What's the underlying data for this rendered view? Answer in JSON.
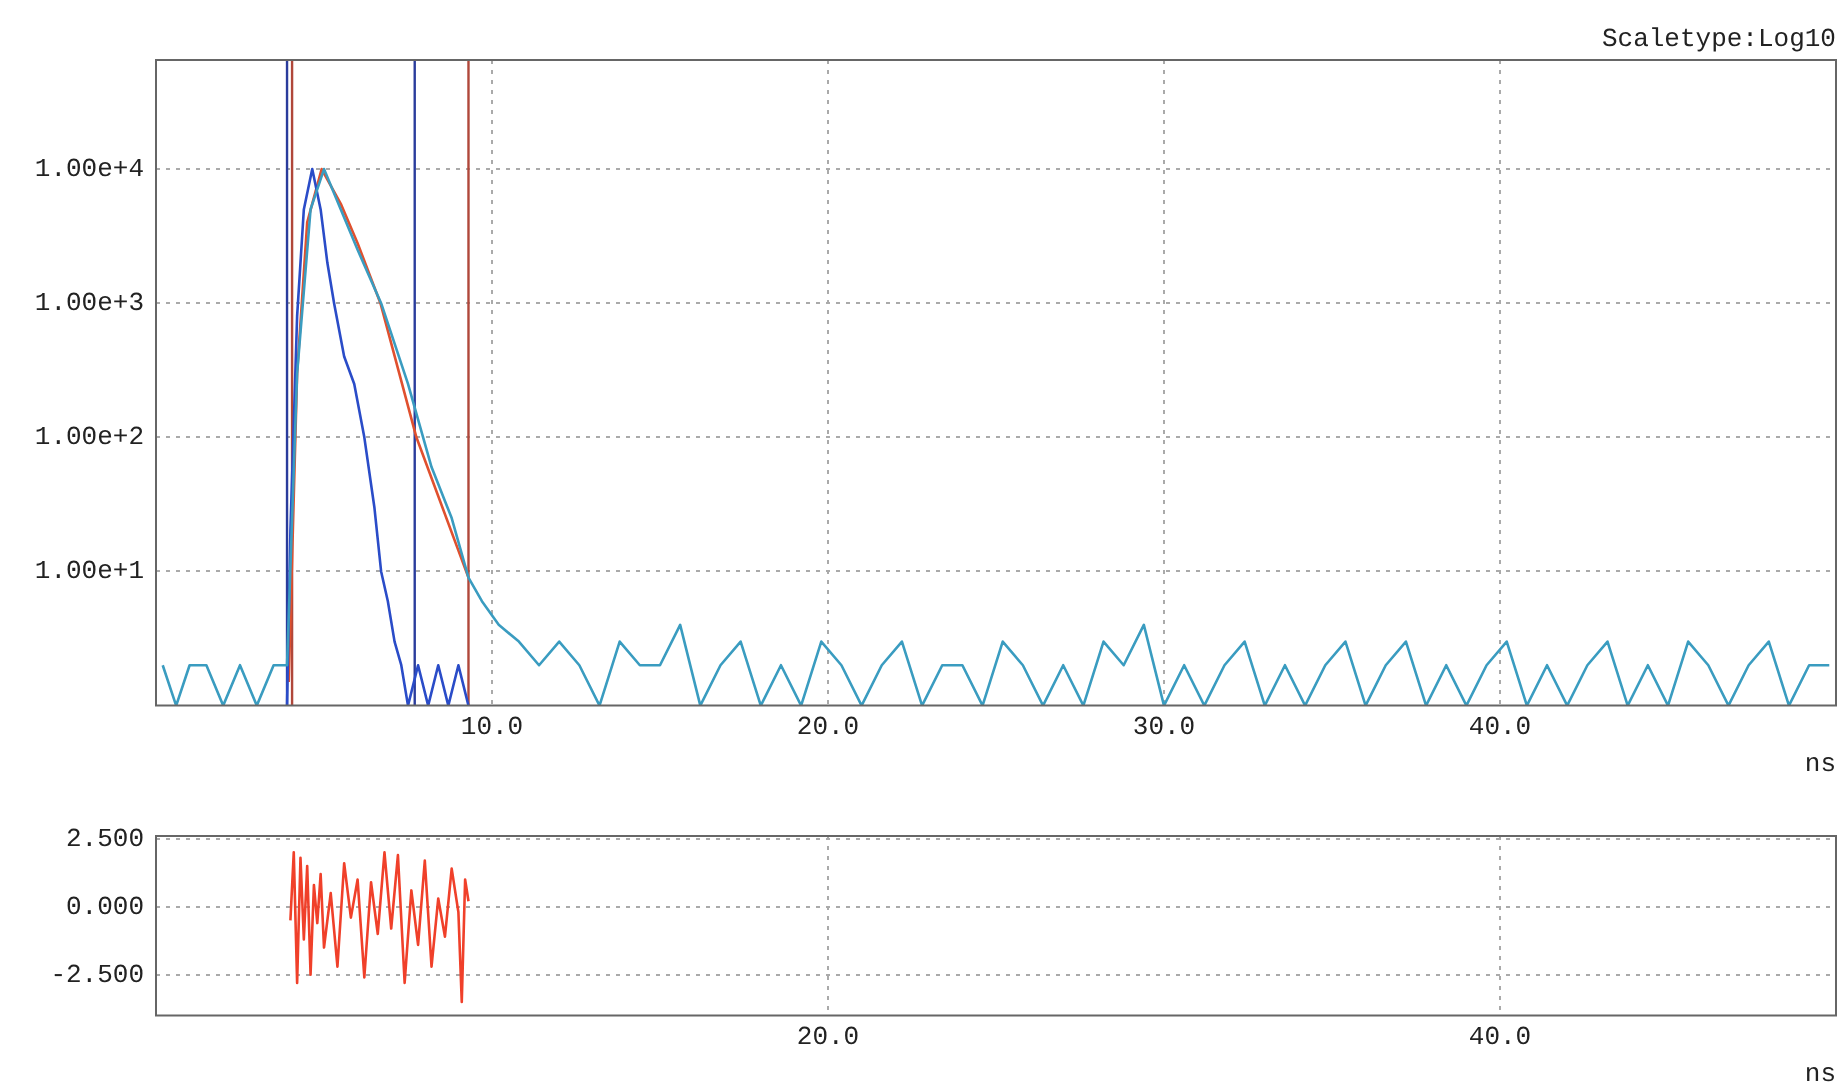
{
  "chart_data": [
    {
      "type": "line",
      "xlabel": "ns",
      "annotations": [
        "Scaletype:Log10"
      ],
      "log": "y",
      "grid": true,
      "legend": false,
      "marker": "none",
      "line_style": "solid",
      "xlim": [
        0,
        50
      ],
      "xticks": [
        {
          "value": 10,
          "label": "10.0"
        },
        {
          "value": 20,
          "label": "20.0"
        },
        {
          "value": 30,
          "label": "30.0"
        },
        {
          "value": 40,
          "label": "40.0"
        }
      ],
      "ylim": [
        1,
        65000
      ],
      "yticks": [
        {
          "value": 10,
          "label": "1.00e+1"
        },
        {
          "value": 100,
          "label": "1.00e+2"
        },
        {
          "value": 1000,
          "label": "1.00e+3"
        },
        {
          "value": 10000,
          "label": "1.00e+4"
        }
      ],
      "ref_lines": [
        {
          "axis": "x",
          "value": 3.9,
          "color": "#2a3c9c"
        },
        {
          "axis": "x",
          "value": 4.05,
          "color": "#b0473a"
        },
        {
          "axis": "x",
          "value": 7.7,
          "color": "#2a3c9c"
        },
        {
          "axis": "x",
          "value": 9.3,
          "color": "#b0473a"
        }
      ],
      "series": [
        {
          "color": "#3a9cc0",
          "x": [
            0.2,
            0.6,
            1.0,
            1.5,
            2.0,
            2.5,
            3.0,
            3.5,
            3.9,
            4.2,
            4.6,
            5.0,
            5.5,
            6.0,
            6.7,
            7.5,
            8.2,
            8.8,
            9.3,
            9.7,
            10.2,
            10.8,
            11.4,
            12.0,
            12.6,
            13.2,
            13.8,
            14.4,
            15.0,
            15.6,
            16.2,
            16.8,
            17.4,
            18.0,
            18.6,
            19.2,
            19.8,
            20.4,
            21.0,
            21.6,
            22.2,
            22.8,
            23.4,
            24.0,
            24.6,
            25.2,
            25.8,
            26.4,
            27.0,
            27.6,
            28.2,
            28.8,
            29.4,
            30.0,
            30.6,
            31.2,
            31.8,
            32.4,
            33.0,
            33.6,
            34.2,
            34.8,
            35.4,
            36.0,
            36.6,
            37.2,
            37.8,
            38.4,
            39.0,
            39.6,
            40.2,
            40.8,
            41.4,
            42.0,
            42.6,
            43.2,
            43.8,
            44.4,
            45.0,
            45.6,
            46.2,
            46.8,
            47.4,
            48.0,
            48.6,
            49.2,
            49.8
          ],
          "values": [
            2,
            1,
            2,
            2,
            1,
            2,
            1,
            2,
            2,
            300,
            5000,
            10000,
            5000,
            2500,
            1000,
            250,
            60,
            25,
            9,
            6,
            4,
            3,
            2,
            3,
            2,
            1,
            3,
            2,
            2,
            4,
            1,
            2,
            3,
            1,
            2,
            1,
            3,
            2,
            1,
            2,
            3,
            1,
            2,
            2,
            1,
            3,
            2,
            1,
            2,
            1,
            3,
            2,
            4,
            1,
            2,
            1,
            2,
            3,
            1,
            2,
            1,
            2,
            3,
            1,
            2,
            3,
            1,
            2,
            1,
            2,
            3,
            1,
            2,
            1,
            2,
            3,
            1,
            2,
            1,
            3,
            2,
            1,
            2,
            3,
            1,
            2,
            2
          ]
        },
        {
          "color": "#2a4cc8",
          "x": [
            3.9,
            4.0,
            4.2,
            4.4,
            4.65,
            4.9,
            5.1,
            5.3,
            5.6,
            5.9,
            6.2,
            6.5,
            6.7,
            6.9,
            7.1,
            7.3,
            7.5,
            7.8,
            8.1,
            8.4,
            8.7,
            9.0,
            9.3
          ],
          "values": [
            1,
            20,
            800,
            5000,
            10000,
            5000,
            2000,
            1000,
            400,
            250,
            100,
            30,
            10,
            6,
            3,
            2,
            1,
            2,
            1,
            2,
            1,
            2,
            1
          ]
        },
        {
          "color": "#e0502e",
          "x": [
            3.95,
            4.2,
            4.5,
            4.93,
            5.5,
            6.0,
            6.68,
            7.75,
            9.3
          ],
          "values": [
            1.5,
            300,
            4000,
            10000,
            5500,
            2800,
            1000,
            100,
            9
          ]
        }
      ]
    },
    {
      "type": "line",
      "xlabel": "ns",
      "grid": true,
      "legend": false,
      "marker": "none",
      "line_style": "solid",
      "xlim": [
        0,
        50
      ],
      "xticks": [
        {
          "value": 20,
          "label": "20.0"
        },
        {
          "value": 40,
          "label": "40.0"
        }
      ],
      "ylim": [
        -4,
        2.6
      ],
      "yticks": [
        {
          "value": -2.5,
          "label": "-2.500"
        },
        {
          "value": 0,
          "label": "0.000"
        },
        {
          "value": 2.5,
          "label": "2.500"
        }
      ],
      "series": [
        {
          "color": "#f0402a",
          "x": [
            4.0,
            4.1,
            4.2,
            4.3,
            4.4,
            4.5,
            4.6,
            4.7,
            4.8,
            4.9,
            5.0,
            5.2,
            5.4,
            5.6,
            5.8,
            6.0,
            6.2,
            6.4,
            6.6,
            6.8,
            7.0,
            7.2,
            7.4,
            7.6,
            7.8,
            8.0,
            8.2,
            8.4,
            8.6,
            8.8,
            9.0,
            9.1,
            9.2,
            9.3
          ],
          "values": [
            -0.5,
            2.0,
            -2.8,
            1.8,
            -1.2,
            1.5,
            -2.5,
            0.8,
            -0.6,
            1.2,
            -1.5,
            0.5,
            -2.2,
            1.6,
            -0.4,
            1.0,
            -2.6,
            0.9,
            -1.0,
            2.0,
            -0.8,
            1.9,
            -2.8,
            0.6,
            -1.4,
            1.7,
            -2.2,
            0.3,
            -1.1,
            1.4,
            -0.2,
            -3.5,
            1.0,
            0.2
          ]
        }
      ]
    }
  ]
}
